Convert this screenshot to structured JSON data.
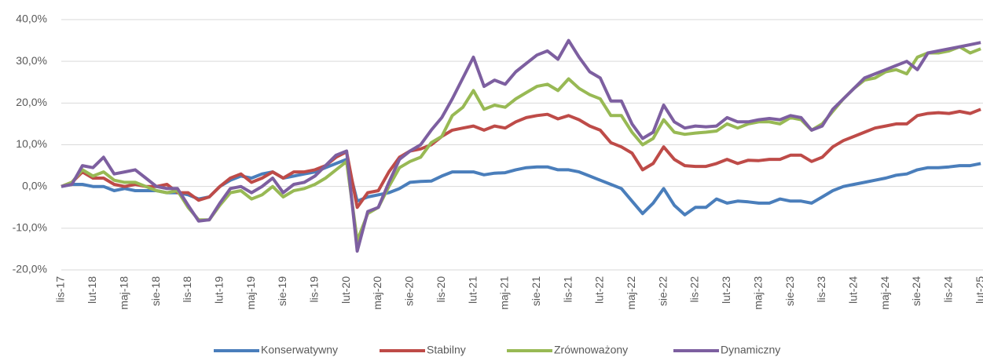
{
  "chart_data": {
    "type": "line",
    "categories": [
      "lis-17",
      null,
      null,
      "lut-18",
      null,
      null,
      "maj-18",
      null,
      null,
      "sie-18",
      null,
      null,
      "lis-18",
      null,
      null,
      "lut-19",
      null,
      null,
      "maj-19",
      null,
      null,
      "sie-19",
      null,
      null,
      "lis-19",
      null,
      null,
      "lut-20",
      null,
      null,
      "maj-20",
      null,
      null,
      "sie-20",
      null,
      null,
      "lis-20",
      null,
      null,
      "lut-21",
      null,
      null,
      "maj-21",
      null,
      null,
      "sie-21",
      null,
      null,
      "lis-21",
      null,
      null,
      "lut-22",
      null,
      null,
      "maj-22",
      null,
      null,
      "sie-22",
      null,
      null,
      "lis-22",
      null,
      null,
      "lut-23",
      null,
      null,
      "maj-23",
      null,
      null,
      "sie-23",
      null,
      null,
      "lis-23",
      null,
      null,
      "lut-24",
      null,
      null,
      "maj-24",
      null,
      null,
      "sie-24",
      null,
      null,
      "lis-24",
      null,
      null,
      "lut-25"
    ],
    "series": [
      {
        "name": "Konserwatywny",
        "color": "#4a7ebb",
        "values": [
          0,
          0.5,
          0.5,
          0,
          0,
          -1,
          -0.5,
          -1,
          -1,
          -1,
          -1.5,
          -1.5,
          -2,
          -3,
          -2.5,
          0,
          1.5,
          2.5,
          2,
          3,
          3.5,
          2,
          2.5,
          3,
          3.5,
          4.5,
          5.5,
          6.5,
          -3.5,
          -2.5,
          -2,
          -1.5,
          -0.5,
          1,
          1.2,
          1.3,
          2.5,
          3.5,
          3.5,
          3.5,
          2.8,
          3.2,
          3.3,
          4,
          4.5,
          4.7,
          4.7,
          4,
          4,
          3.5,
          2.5,
          1.5,
          0.5,
          -0.5,
          -3.5,
          -6.5,
          -4,
          -0.5,
          -4.5,
          -6.8,
          -5,
          -5,
          -3,
          -4,
          -3.5,
          -3.7,
          -4,
          -4,
          -3,
          -3.5,
          -3.5,
          -4,
          -2.5,
          -1,
          0,
          0.5,
          1,
          1.5,
          2,
          2.7,
          3,
          4,
          4.5,
          4.5,
          4.7,
          5,
          5,
          5.5
        ]
      },
      {
        "name": "Stabilny",
        "color": "#be4b48",
        "values": [
          0,
          1,
          3.5,
          2,
          2,
          0.5,
          0,
          0.5,
          0,
          0,
          0.5,
          -1.5,
          -1.5,
          -3.3,
          -2.5,
          0,
          2,
          3,
          1,
          2,
          3.5,
          2,
          3.5,
          3.5,
          4,
          5,
          7,
          8.3,
          -5,
          -1.5,
          -1,
          3.5,
          7,
          8.5,
          9,
          10,
          12,
          13.5,
          14,
          14.5,
          13.5,
          14.5,
          14,
          15.5,
          16.5,
          17,
          17.3,
          16.2,
          17,
          16,
          14.5,
          13.5,
          10.5,
          9.5,
          8,
          4,
          5.5,
          9.5,
          6.5,
          5,
          4.8,
          4.8,
          5.5,
          6.5,
          5.5,
          6.3,
          6.2,
          6.5,
          6.5,
          7.5,
          7.5,
          6,
          7,
          9.5,
          11,
          12,
          13,
          14,
          14.5,
          15,
          15,
          17,
          17.5,
          17.7,
          17.5,
          18,
          17.5,
          18.5
        ]
      },
      {
        "name": "Zrównoważony",
        "color": "#98b954",
        "values": [
          0,
          1,
          4,
          2.5,
          3.5,
          1.5,
          1,
          1,
          0,
          -1,
          -1.5,
          -1,
          -5,
          -8,
          -8,
          -4.5,
          -1.5,
          -1,
          -3,
          -2,
          0,
          -2.5,
          -1,
          -0.5,
          0.5,
          2,
          4,
          6,
          -13,
          -6.5,
          -5,
          0,
          4.5,
          6,
          7,
          10.5,
          12,
          17,
          19,
          23,
          18.5,
          19.5,
          19,
          21,
          22.5,
          24,
          24.5,
          23,
          25.8,
          23.5,
          22,
          21,
          17,
          17,
          13,
          10,
          11.5,
          16,
          13,
          12.5,
          12.8,
          13,
          13.3,
          15,
          14,
          15,
          15.5,
          15.5,
          15,
          16.5,
          16,
          13.5,
          15,
          18,
          21,
          23.5,
          25.5,
          26,
          27.5,
          28,
          27,
          31,
          32,
          32,
          32.5,
          33.5,
          32,
          33
        ]
      },
      {
        "name": "Dynamiczny",
        "color": "#7d5fa0",
        "values": [
          0,
          0.5,
          5,
          4.5,
          7,
          3,
          3.5,
          4,
          2,
          0,
          -0.5,
          -0.5,
          -4.5,
          -8.3,
          -8,
          -4,
          -0.5,
          0,
          -1.5,
          0,
          2,
          -1.5,
          0.5,
          1,
          2.5,
          5,
          7.5,
          8.5,
          -15.5,
          -6,
          -5,
          1,
          6.5,
          8.5,
          10,
          13.5,
          16.5,
          21,
          26,
          31,
          24,
          25.5,
          24.5,
          27.5,
          29.5,
          31.5,
          32.5,
          30.5,
          35,
          31,
          27.5,
          26,
          20.5,
          20.5,
          15,
          11.5,
          13,
          19.5,
          15.5,
          14,
          14.5,
          14.3,
          14.5,
          16.5,
          15.5,
          15.5,
          16,
          16.3,
          16,
          17,
          16.5,
          13.5,
          14.5,
          18.5,
          21,
          23.5,
          26,
          27,
          28,
          29,
          30,
          28,
          32,
          32.5,
          33,
          33.5,
          34,
          34.5
        ]
      }
    ],
    "ylim": [
      -20,
      40
    ],
    "yticks": [
      {
        "value": -20,
        "label": "-20,0%"
      },
      {
        "value": -10,
        "label": "-10,0%"
      },
      {
        "value": 0,
        "label": "0,0%"
      },
      {
        "value": 10,
        "label": "10,0%"
      },
      {
        "value": 20,
        "label": "20,0%"
      },
      {
        "value": 30,
        "label": "30,0%"
      },
      {
        "value": 40,
        "label": "40,0%"
      }
    ],
    "grid": true
  }
}
